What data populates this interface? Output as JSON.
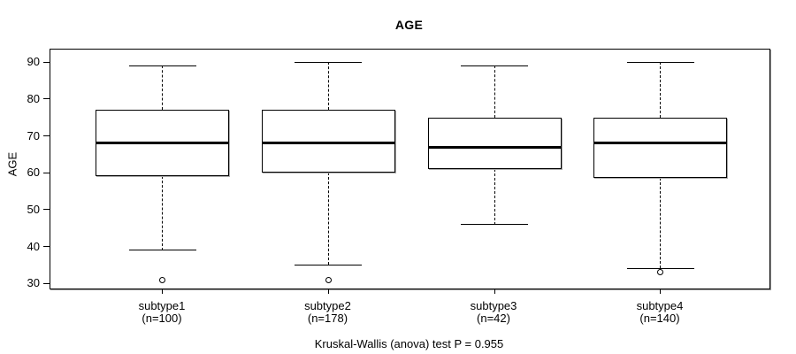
{
  "chart_data": {
    "type": "boxplot",
    "title": "AGE",
    "ylabel": "AGE",
    "xlabel": "",
    "ylim": [
      28.6,
      93.4
    ],
    "yticks": [
      30,
      40,
      50,
      60,
      70,
      80,
      90
    ],
    "grid": false,
    "annotation": "Kruskal-Wallis (anova) test P = 0.955",
    "colors": {
      "line": "#000000",
      "box_fill": "#ffffff",
      "background": "#ffffff"
    },
    "groups": [
      {
        "label": "subtype1",
        "sublabel": "(n=100)",
        "n": 100,
        "whisker_low": 39,
        "q1": 59,
        "median": 68,
        "q3": 77,
        "whisker_high": 89,
        "outliers": [
          31
        ]
      },
      {
        "label": "subtype2",
        "sublabel": "(n=178)",
        "n": 178,
        "whisker_low": 35,
        "q1": 60,
        "median": 68,
        "q3": 77,
        "whisker_high": 90,
        "outliers": [
          31
        ]
      },
      {
        "label": "subtype3",
        "sublabel": "(n=42)",
        "n": 42,
        "whisker_low": 46,
        "q1": 61,
        "median": 67,
        "q3": 75,
        "whisker_high": 89,
        "outliers": []
      },
      {
        "label": "subtype4",
        "sublabel": "(n=140)",
        "n": 140,
        "whisker_low": 34,
        "q1": 58.5,
        "median": 68,
        "q3": 75,
        "whisker_high": 90,
        "outliers": [
          33
        ]
      }
    ]
  }
}
